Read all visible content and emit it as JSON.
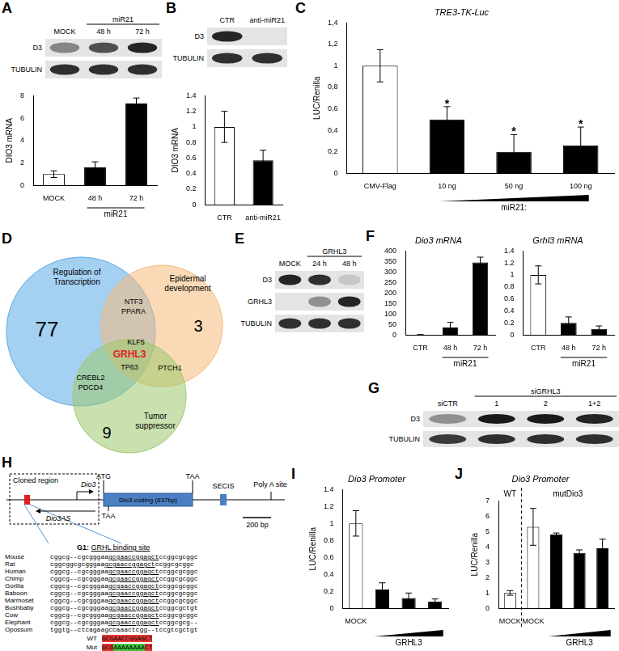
{
  "panel_letters": [
    "A",
    "B",
    "C",
    "D",
    "E",
    "F",
    "G",
    "H",
    "I",
    "J"
  ],
  "chart_data": [
    {
      "type": "bar",
      "y_label": "DIO3 mRNA",
      "categories": [
        "MOCK",
        "48 h",
        "72 h"
      ],
      "category_groups": [
        null,
        "miR21",
        "miR21"
      ],
      "values": [
        1,
        1.6,
        7.3
      ],
      "errors": [
        0.3,
        0.5,
        0.5
      ],
      "colors": [
        "#ffffff",
        "#000000",
        "#000000"
      ],
      "ylim": [
        0,
        8
      ],
      "yticks": [
        0,
        2,
        4,
        6,
        8
      ],
      "grid": false
    },
    {
      "type": "bar",
      "y_label": "DIO3 mRNA",
      "categories": [
        "CTR",
        "anti-miR21"
      ],
      "values": [
        1,
        0.57
      ],
      "errors": [
        0.2,
        0.13
      ],
      "colors": [
        "#ffffff",
        "#000000"
      ],
      "ylim": [
        0,
        1.4
      ],
      "yticks": [
        0,
        0.2,
        0.4,
        0.6,
        0.8,
        1,
        1.2,
        1.4
      ],
      "grid": false
    },
    {
      "type": "bar",
      "title": "TRE3-TK-Luc",
      "y_label": "LUC/Renilla",
      "categories": [
        "CMV-Flag",
        "10 ng",
        "50 ng",
        "100 ng"
      ],
      "category_groups": [
        null,
        "miR21:",
        "miR21:",
        "miR21:"
      ],
      "values": [
        1,
        0.5,
        0.2,
        0.26
      ],
      "errors": [
        0.15,
        0.12,
        0.16,
        0.17
      ],
      "significance": [
        null,
        "*",
        "*",
        "*"
      ],
      "colors": [
        "#ffffff",
        "#000000",
        "#000000",
        "#000000"
      ],
      "ylim": [
        0,
        1.4
      ],
      "yticks": [
        0,
        {
          "value": 0.2,
          "label": "0,2"
        },
        {
          "value": 0.4,
          "label": "0,4"
        },
        {
          "value": 0.6,
          "label": "0,6"
        },
        {
          "value": 0.8,
          "label": "0,8"
        },
        1,
        {
          "value": 1.2,
          "label": "1,2"
        },
        {
          "value": 1.4,
          "label": "1,4"
        }
      ],
      "grid": false
    },
    {
      "type": "bar",
      "title": "Dio3 mRNA",
      "categories": [
        "CTR",
        "48 h",
        "72 h"
      ],
      "category_groups": [
        null,
        "miR21",
        "miR21"
      ],
      "values": [
        1,
        35,
        345
      ],
      "errors": [
        0.2,
        25,
        25
      ],
      "colors": [
        "#ffffff",
        "#000000",
        "#000000"
      ],
      "ylim": [
        0,
        400
      ],
      "yticks": [
        0,
        50,
        100,
        150,
        200,
        250,
        300,
        350,
        400
      ],
      "grid": false
    },
    {
      "type": "bar",
      "title": "Grhl3 mRNA",
      "categories": [
        "CTR",
        "48 h",
        "72 h"
      ],
      "category_groups": [
        null,
        "miR21",
        "miR21"
      ],
      "values": [
        1,
        0.2,
        0.1
      ],
      "errors": [
        0.15,
        0.1,
        0.05
      ],
      "colors": [
        "#ffffff",
        "#000000",
        "#000000"
      ],
      "ylim": [
        0,
        1.4
      ],
      "yticks": [
        0,
        0.2,
        0.4,
        0.6,
        0.8,
        1,
        1.2,
        1.4
      ],
      "grid": false
    },
    {
      "type": "bar",
      "title": "Dio3 Promoter",
      "y_label": "LUC/Renilla",
      "categories": [
        "MOCK",
        null,
        null,
        null
      ],
      "category_groups": [
        null,
        "GRHL3",
        "GRHL3",
        "GRHL3"
      ],
      "values": [
        1,
        0.22,
        0.12,
        0.08
      ],
      "errors": [
        0.15,
        0.08,
        0.06,
        0.03
      ],
      "colors": [
        "#ffffff",
        "#000000",
        "#000000",
        "#000000"
      ],
      "ylim": [
        0,
        1.4
      ],
      "yticks": [
        0,
        0.2,
        0.4,
        0.6,
        0.8,
        1,
        1.2,
        1.4
      ],
      "grid": false
    },
    {
      "type": "bar",
      "title": "Dio3 Promoter",
      "y_label": "LUC/Renilla",
      "categories": [
        "MOCK",
        "MOCK",
        null,
        null,
        null
      ],
      "category_groups": [
        null,
        null,
        "GRHL3",
        "GRHL3",
        "GRHL3"
      ],
      "sections": [
        "WT",
        "mutDio3",
        "mutDio3",
        "mutDio3",
        "mutDio3"
      ],
      "values": [
        1,
        5.3,
        4.8,
        3.6,
        3.9
      ],
      "errors": [
        0.15,
        1.2,
        0.1,
        0.2,
        0.6
      ],
      "colors": [
        "#ffffff",
        "#ffffff",
        "#000000",
        "#000000",
        "#000000"
      ],
      "ylim": [
        0,
        7
      ],
      "yticks": [
        0,
        1,
        2,
        3,
        4,
        5,
        6,
        7
      ],
      "grid": false
    }
  ],
  "blots": [
    {
      "lanes": [
        "MOCK",
        "48 h",
        "72 h"
      ],
      "lane_groups": [
        null,
        "miR21",
        "miR21"
      ],
      "rows": [
        {
          "label": "D3",
          "bands": [
            0.45,
            0.7,
            0.9
          ]
        },
        {
          "label": "TUBULIN",
          "bands": [
            0.85,
            0.85,
            0.85
          ]
        }
      ]
    },
    {
      "lanes": [
        "CTR",
        "anti-miR21"
      ],
      "rows": [
        {
          "label": "D3",
          "bands": [
            0.9,
            0
          ]
        },
        {
          "label": "TUBULIN",
          "bands": [
            0.85,
            0.85
          ]
        }
      ]
    },
    {
      "lanes": [
        "MOCK",
        "24 h",
        "48 h"
      ],
      "lane_groups": [
        null,
        "GRHL3",
        "GRHL3"
      ],
      "rows": [
        {
          "label": "D3",
          "bands": [
            0.9,
            0.85,
            0.15
          ]
        },
        {
          "label": "GRHL3",
          "bands": [
            0,
            0.4,
            0.9
          ]
        },
        {
          "label": "TUBULIN",
          "bands": [
            0.85,
            0.85,
            0.85
          ]
        }
      ]
    },
    {
      "lanes": [
        "siCTR",
        "1",
        "2",
        "1+2"
      ],
      "lane_groups": [
        null,
        "siGRHL3",
        "siGRHL3",
        "siGRHL3"
      ],
      "rows": [
        {
          "label": "D3",
          "bands": [
            0.4,
            0.95,
            0.95,
            0.9
          ]
        },
        {
          "label": "TUBULIN",
          "bands": [
            0.8,
            0.85,
            0.85,
            0.85
          ]
        }
      ]
    }
  ],
  "venn": {
    "sets": [
      {
        "label": "Regulation of Transcription",
        "count": 77,
        "color": "#5aa9e6"
      },
      {
        "label": "Epidermal development",
        "count": 3,
        "color": "#f5b97a"
      },
      {
        "label": "Tumor suppressor",
        "count": 9,
        "color": "#9cc96b"
      }
    ],
    "regions": [
      {
        "in": [
          "Regulation of Transcription",
          "Epidermal development"
        ],
        "genes": [
          "NTF3",
          "PPARA"
        ]
      },
      {
        "in": [
          "Regulation of Transcription",
          "Epidermal development",
          "Tumor suppressor"
        ],
        "genes": [
          "KLF5",
          {
            "name": "GRHL3",
            "color": "#e02020"
          },
          "TP63"
        ]
      },
      {
        "in": [
          "Regulation of Transcription",
          "Tumor suppressor"
        ],
        "genes": [
          "CREBL2",
          "PDCD4"
        ]
      },
      {
        "in": [
          "Epidermal development",
          "Tumor suppressor"
        ],
        "genes": [
          "PTCH1"
        ]
      }
    ]
  },
  "gene_map": {
    "cloned_region": "Cloned region",
    "gene": "Dio3",
    "start_codon": "ATG",
    "stop_codon": "TAA",
    "coding": "Dio3 coding (837bp)",
    "antisense_stop": "TAA",
    "secis": "SECIS",
    "polya": "Poly A site",
    "antisense": "Dio3AS",
    "scale": "200 bp"
  },
  "alignment": {
    "prefix": "G1:",
    "title": "GRHL binding site",
    "rows": [
      {
        "species": "Mouse",
        "parts": [
          "cggcg--cgcgggaa",
          "gcgaaccggagct",
          "ccggcgcggc"
        ]
      },
      {
        "species": "Rat",
        "parts": [
          "cggcggcgcgggaa",
          "gcgaaccggagct",
          "ccggcgcggc"
        ]
      },
      {
        "species": "Human",
        "parts": [
          "cggcg--cgcgggaa",
          "gcgaaccggagct",
          "ccggcgcggc"
        ]
      },
      {
        "species": "Chimp",
        "parts": [
          "cggcg--cgcgggaa",
          "gcgaaccggagct",
          "ccggcgcggc"
        ]
      },
      {
        "species": "Gorilla",
        "parts": [
          "cggcg--cgcgggaa",
          "gcgaaccggagct",
          "ccggcgcggc"
        ]
      },
      {
        "species": "Baboon",
        "parts": [
          "cggcg--cgcgggaa",
          "gcgaaccggagct",
          "ccggcgcggc"
        ]
      },
      {
        "species": "Marmoset",
        "parts": [
          "cggcg--cgcgggaa",
          "gcgaaccggagct",
          "ccggcgcggc"
        ]
      },
      {
        "species": "Bushbaby",
        "parts": [
          "cggcg--cgcgggaa",
          "gcgaaccggagct",
          "ccggcgctgt"
        ]
      },
      {
        "species": "Cow",
        "parts": [
          "cggcg--cgcgggaa",
          "gcgaaccggagct",
          "ccggcgcggc"
        ]
      },
      {
        "species": "Elephant",
        "parts": [
          "cggcg--cgcgggaa",
          "gcgaaccggagct",
          "ccggcgcg--"
        ]
      },
      {
        "species": "Opossum",
        "parts": [
          "tggtg--ctcagaagccaaactcgg--tccgtcgctgt"
        ]
      }
    ],
    "wt": {
      "label": "WT",
      "parts": [
        {
          "text": "GCGAACCGGAGCT",
          "color": "#e53935"
        }
      ]
    },
    "mut": {
      "label": "Mut",
      "parts": [
        {
          "text": "GCG",
          "color": "#e53935"
        },
        {
          "text": "AAAAAAAA",
          "color": "#43c443"
        },
        {
          "text": "CT",
          "color": "#e53935"
        }
      ]
    }
  }
}
